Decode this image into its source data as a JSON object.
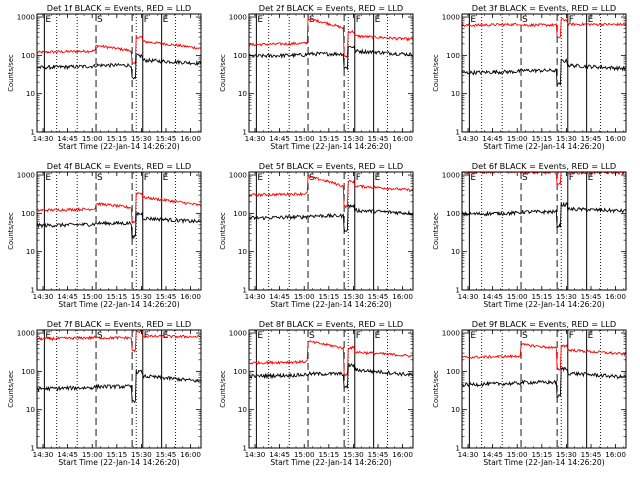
{
  "chart_data": {
    "type": "line",
    "title_template": "Det {d}f BLACK = Events, RED = LLD",
    "panel_titles": [
      "Det 1f BLACK = Events, RED = LLD",
      "Det 2f BLACK = Events, RED = LLD",
      "Det 3f BLACK = Events, RED = LLD",
      "Det 4f BLACK = Events, RED = LLD",
      "Det 5f BLACK = Events, RED = LLD",
      "Det 6f BLACK = Events, RED = LLD",
      "Det 7f BLACK = Events, RED = LLD",
      "Det 8f BLACK = Events, RED = LLD",
      "Det 9f BLACK = Events, RED = LLD"
    ],
    "xlabel": "Start Time (22-Jan-14 14:26:20)",
    "ylabel": "Counts/sec",
    "y_scale": "log",
    "ylim": [
      1,
      1200
    ],
    "y_ticks": [
      1,
      10,
      100,
      1000
    ],
    "y_tick_labels": [
      "1",
      "10",
      "100",
      "1000"
    ],
    "x_ticks": [
      "14:30",
      "14:45",
      "15:00",
      "15:15",
      "15:30",
      "15:45",
      "16:00"
    ],
    "x_tick_minutes": [
      3.67,
      18.67,
      33.67,
      48.67,
      63.67,
      78.67,
      93.67
    ],
    "x_range_minutes": [
      0,
      100
    ],
    "colors": {
      "events": "#000000",
      "lld": "#ff0000"
    },
    "vertical_markers": [
      {
        "minute": 4.5,
        "style": "solid",
        "label": "E"
      },
      {
        "minute": 12.0,
        "style": "dotted",
        "label": ""
      },
      {
        "minute": 24.5,
        "style": "dotted",
        "label": ""
      },
      {
        "minute": 36.0,
        "style": "dashed",
        "label": "S"
      },
      {
        "minute": 58.0,
        "style": "dashed",
        "label": ""
      },
      {
        "minute": 60.5,
        "style": "dotted",
        "label": ""
      },
      {
        "minute": 64.5,
        "style": "solid",
        "label": "F"
      },
      {
        "minute": 76.0,
        "style": "solid",
        "label": "E"
      },
      {
        "minute": 84.5,
        "style": "dotted",
        "label": ""
      }
    ],
    "panels": [
      {
        "detector": "1f",
        "red": {
          "pre": 120,
          "during": [
            180,
            130
          ],
          "post": 230,
          "end": 150
        },
        "black": {
          "pre": 48,
          "post": 75,
          "end": 62
        },
        "red_spikes": true
      },
      {
        "detector": "2f",
        "red": {
          "pre": 190,
          "during": [
            900,
            500
          ],
          "post": 320,
          "end": 260
        },
        "black": {
          "pre": 95,
          "post": 130,
          "end": 105
        },
        "red_spikes": true
      },
      {
        "detector": "3f",
        "red": {
          "pre": 600,
          "during": [
            620,
            650
          ],
          "post": 650,
          "end": 640
        },
        "black": {
          "pre": 35,
          "post": 55,
          "end": 45
        },
        "red_spikes": false
      },
      {
        "detector": "4f",
        "red": {
          "pre": 120,
          "during": [
            180,
            140
          ],
          "post": 260,
          "end": 160
        },
        "black": {
          "pre": 48,
          "post": 75,
          "end": 60
        },
        "red_spikes": true
      },
      {
        "detector": "5f",
        "red": {
          "pre": 300,
          "during": [
            900,
            500
          ],
          "post": 520,
          "end": 400
        },
        "black": {
          "pre": 75,
          "post": 120,
          "end": 100
        },
        "red_spikes": true
      },
      {
        "detector": "6f",
        "red": {
          "pre": 1150,
          "during": [
            1150,
            1150
          ],
          "post": 1150,
          "end": 1150
        },
        "black": {
          "pre": 95,
          "post": 130,
          "end": 115
        },
        "red_spikes": false
      },
      {
        "detector": "7f",
        "red": {
          "pre": 700,
          "during": [
            750,
            800
          ],
          "post": 820,
          "end": 800
        },
        "black": {
          "pre": 35,
          "post": 75,
          "end": 55
        },
        "red_spikes": false
      },
      {
        "detector": "8f",
        "red": {
          "pre": 165,
          "during": [
            600,
            400
          ],
          "post": 320,
          "end": 250
        },
        "black": {
          "pre": 75,
          "post": 110,
          "end": 80
        },
        "red_spikes": true
      },
      {
        "detector": "9f",
        "red": {
          "pre": 230,
          "during": [
            500,
            400
          ],
          "post": 360,
          "end": 280
        },
        "black": {
          "pre": 45,
          "post": 90,
          "end": 70
        },
        "red_spikes": true
      }
    ]
  }
}
